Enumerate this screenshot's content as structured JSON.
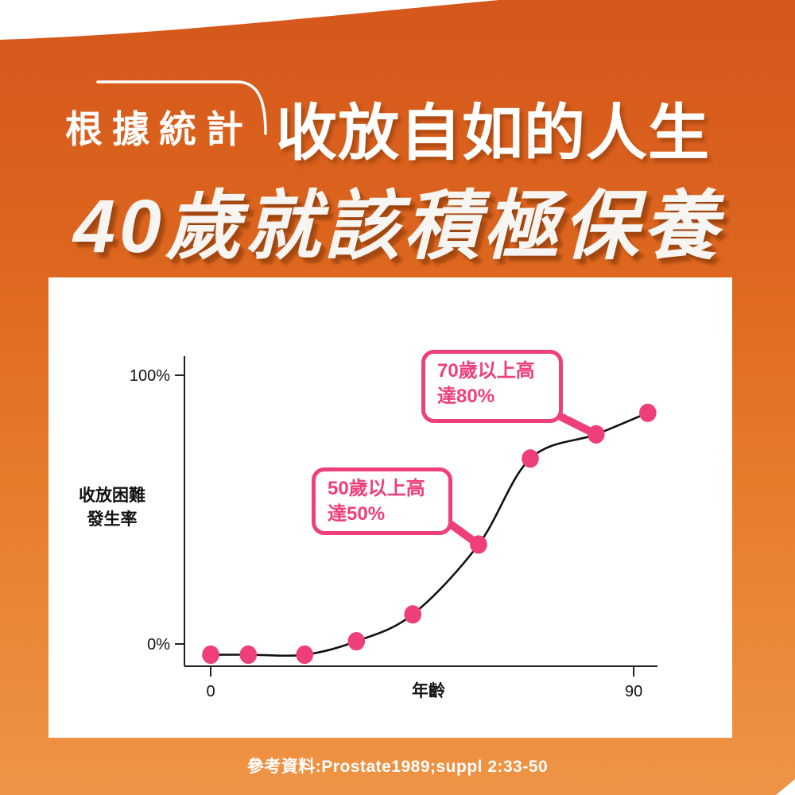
{
  "page": {
    "accent_pink": "#ee3f79",
    "background_top": "#d5571c",
    "background_bottom": "#ef9446",
    "curve_color": "#111111"
  },
  "header": {
    "badge": "根據統計",
    "subtitle": "收放自如的人生",
    "title": "40歲就該積極保養"
  },
  "chart_data": {
    "type": "line",
    "title": "",
    "xlabel": "年齡",
    "ylabel_lines": [
      "收放困難",
      "發生率"
    ],
    "x_ticks": [
      {
        "value": 0,
        "label": "0"
      },
      {
        "value": 90,
        "label": "90"
      }
    ],
    "y_ticks": [
      {
        "value": 0,
        "label": "0%"
      },
      {
        "value": 100,
        "label": "100%"
      }
    ],
    "xlim": [
      0,
      95
    ],
    "ylim": [
      0,
      100
    ],
    "grid": false,
    "x": [
      0,
      8,
      20,
      31,
      43,
      57,
      68,
      82,
      93
    ],
    "y": [
      -4,
      -4,
      -4,
      1,
      11,
      37,
      69,
      78,
      86
    ],
    "annotations": [
      {
        "line1": "70歲以上高",
        "line2": "達80%",
        "point_index": 7
      },
      {
        "line1": "50歲以上高",
        "line2": "達50%",
        "point_index": 5
      }
    ]
  },
  "footer": {
    "reference": "參考資料:Prostate1989;suppl 2:33-50"
  }
}
